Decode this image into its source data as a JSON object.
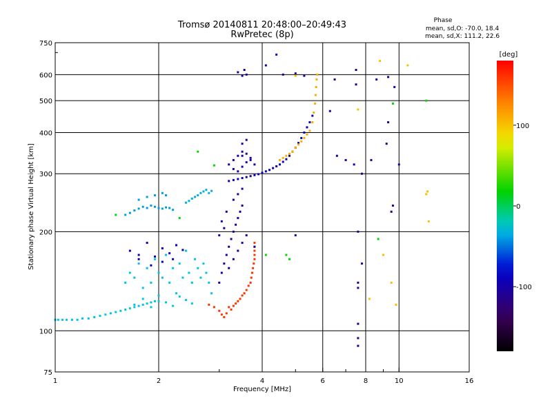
{
  "chart_data": {
    "type": "scatter",
    "title": "Tromsø 20140811 20:48:00–20:49:43",
    "subtitle": "RwPretec (8p)",
    "xlabel": "Frequency [MHz]",
    "ylabel": "Stationary phase Virtual Height [km]",
    "x_scale": "log",
    "y_scale": "log",
    "xlim": [
      1,
      16
    ],
    "ylim": [
      75,
      750
    ],
    "x_ticks": [
      1,
      2,
      4,
      6,
      8,
      10,
      16
    ],
    "x_minor_ticks": [
      3,
      5,
      7,
      9
    ],
    "y_ticks": [
      75,
      100,
      200,
      300,
      400,
      500,
      600,
      750
    ],
    "phase_header": "Phase",
    "stats_o": "mean, sd,O: -70.0, 18.4",
    "stats_x": "mean, sd,X: 111.2, 22.6",
    "colorbar": {
      "label": "[deg]",
      "min": -180,
      "max": 180,
      "ticks": [
        100,
        0,
        -100
      ],
      "tick_labels": [
        "100",
        "0",
        "-100"
      ]
    },
    "series": [
      {
        "values": [
          [
            1.0,
            108
          ],
          [
            1.02,
            108
          ],
          [
            1.05,
            108
          ],
          [
            1.08,
            108
          ],
          [
            1.12,
            108
          ],
          [
            1.16,
            108
          ],
          [
            1.2,
            109
          ],
          [
            1.25,
            109
          ],
          [
            1.3,
            110
          ],
          [
            1.35,
            111
          ],
          [
            1.4,
            112
          ],
          [
            1.45,
            113
          ],
          [
            1.5,
            114
          ],
          [
            1.55,
            115
          ],
          [
            1.6,
            116
          ],
          [
            1.65,
            117
          ],
          [
            1.7,
            118
          ],
          [
            1.75,
            119
          ],
          [
            1.8,
            120
          ],
          [
            1.85,
            121
          ],
          [
            1.9,
            122
          ],
          [
            1.95,
            123
          ],
          [
            2.0,
            123
          ]
        ],
        "phase": -30
      },
      {
        "values": [
          [
            1.6,
            140
          ],
          [
            1.65,
            150
          ],
          [
            1.7,
            145
          ],
          [
            1.75,
            160
          ],
          [
            1.8,
            135
          ],
          [
            1.85,
            155
          ],
          [
            1.9,
            140
          ],
          [
            1.95,
            165
          ],
          [
            2.0,
            150
          ],
          [
            2.05,
            145
          ],
          [
            2.1,
            170
          ],
          [
            2.15,
            140
          ],
          [
            2.2,
            155
          ],
          [
            2.25,
            130
          ],
          [
            2.3,
            160
          ],
          [
            2.35,
            145
          ],
          [
            2.4,
            175
          ],
          [
            2.45,
            150
          ],
          [
            2.5,
            140
          ],
          [
            2.55,
            165
          ],
          [
            2.6,
            155
          ],
          [
            2.65,
            145
          ],
          [
            2.7,
            160
          ],
          [
            2.75,
            150
          ],
          [
            2.8,
            140
          ],
          [
            2.85,
            130
          ],
          [
            1.7,
            120
          ],
          [
            1.8,
            125
          ],
          [
            1.9,
            118
          ],
          [
            2.0,
            128
          ],
          [
            2.1,
            122
          ],
          [
            2.2,
            119
          ],
          [
            2.3,
            127
          ],
          [
            2.4,
            124
          ],
          [
            2.5,
            121
          ]
        ],
        "phase": -30
      },
      {
        "values": [
          [
            1.65,
            175
          ],
          [
            1.75,
            170
          ],
          [
            1.85,
            185
          ],
          [
            1.95,
            168
          ],
          [
            2.05,
            178
          ],
          [
            2.15,
            172
          ],
          [
            2.25,
            182
          ],
          [
            2.35,
            176
          ],
          [
            1.75,
            165
          ],
          [
            1.9,
            158
          ],
          [
            2.05,
            162
          ],
          [
            2.2,
            165
          ]
        ],
        "phase": -90
      },
      {
        "values": [
          [
            1.6,
            225
          ],
          [
            1.65,
            228
          ],
          [
            1.7,
            232
          ],
          [
            1.75,
            235
          ],
          [
            1.8,
            238
          ],
          [
            1.85,
            236
          ],
          [
            1.9,
            240
          ],
          [
            1.95,
            238
          ],
          [
            2.0,
            236
          ],
          [
            2.05,
            235
          ],
          [
            2.1,
            237
          ],
          [
            2.15,
            236
          ],
          [
            2.2,
            233
          ],
          [
            1.75,
            250
          ],
          [
            1.85,
            255
          ],
          [
            1.95,
            258
          ],
          [
            2.05,
            262
          ],
          [
            2.1,
            258
          ]
        ],
        "phase": -40
      },
      {
        "values": [
          [
            2.4,
            245
          ],
          [
            2.45,
            248
          ],
          [
            2.5,
            252
          ],
          [
            2.55,
            255
          ],
          [
            2.6,
            258
          ],
          [
            2.65,
            262
          ],
          [
            2.7,
            265
          ],
          [
            2.75,
            268
          ],
          [
            2.8,
            262
          ],
          [
            2.85,
            266
          ]
        ],
        "phase": -35
      },
      {
        "values": [
          [
            2.8,
            120
          ],
          [
            2.9,
            118
          ],
          [
            3.0,
            115
          ],
          [
            3.05,
            112
          ],
          [
            3.1,
            110
          ],
          [
            3.15,
            113
          ],
          [
            3.2,
            118
          ],
          [
            3.25,
            116
          ],
          [
            3.3,
            119
          ],
          [
            3.35,
            121
          ],
          [
            3.4,
            123
          ],
          [
            3.45,
            125
          ],
          [
            3.5,
            128
          ],
          [
            3.55,
            130
          ],
          [
            3.6,
            133
          ],
          [
            3.65,
            137
          ],
          [
            3.7,
            140
          ],
          [
            3.72,
            145
          ],
          [
            3.74,
            150
          ],
          [
            3.76,
            155
          ],
          [
            3.78,
            160
          ],
          [
            3.8,
            165
          ],
          [
            3.8,
            170
          ],
          [
            3.8,
            175
          ],
          [
            3.8,
            180
          ],
          [
            3.8,
            185
          ]
        ],
        "phase": 160
      },
      {
        "values": [
          [
            3.0,
            140
          ],
          [
            3.05,
            150
          ],
          [
            3.1,
            160
          ],
          [
            3.15,
            170
          ],
          [
            3.2,
            180
          ],
          [
            3.25,
            190
          ],
          [
            3.3,
            200
          ],
          [
            3.35,
            210
          ],
          [
            3.4,
            220
          ],
          [
            3.45,
            230
          ],
          [
            3.5,
            240
          ],
          [
            3.2,
            155
          ],
          [
            3.3,
            165
          ],
          [
            3.4,
            175
          ],
          [
            3.5,
            185
          ],
          [
            3.6,
            195
          ],
          [
            3.3,
            250
          ],
          [
            3.4,
            260
          ],
          [
            3.5,
            270
          ],
          [
            3.0,
            195
          ],
          [
            3.1,
            205
          ],
          [
            3.05,
            215
          ],
          [
            3.15,
            230
          ]
        ],
        "phase": -105
      },
      {
        "values": [
          [
            3.2,
            285
          ],
          [
            3.3,
            287
          ],
          [
            3.4,
            289
          ],
          [
            3.5,
            291
          ],
          [
            3.6,
            293
          ],
          [
            3.7,
            295
          ],
          [
            3.8,
            297
          ],
          [
            3.9,
            299
          ],
          [
            4.0,
            302
          ],
          [
            4.1,
            305
          ],
          [
            4.2,
            308
          ],
          [
            4.3,
            312
          ],
          [
            4.4,
            316
          ],
          [
            4.5,
            320
          ],
          [
            4.6,
            326
          ],
          [
            4.7,
            332
          ],
          [
            4.8,
            340
          ],
          [
            4.9,
            350
          ],
          [
            5.0,
            360
          ],
          [
            5.1,
            372
          ],
          [
            5.2,
            385
          ],
          [
            5.3,
            400
          ],
          [
            5.4,
            415
          ],
          [
            5.5,
            430
          ],
          [
            5.6,
            450
          ]
        ],
        "phase": -90
      },
      {
        "values": [
          [
            3.2,
            320
          ],
          [
            3.3,
            330
          ],
          [
            3.4,
            340
          ],
          [
            3.5,
            350
          ],
          [
            3.6,
            345
          ],
          [
            3.7,
            335
          ],
          [
            3.3,
            310
          ],
          [
            3.4,
            305
          ],
          [
            3.5,
            315
          ],
          [
            3.6,
            325
          ],
          [
            3.7,
            330
          ],
          [
            3.8,
            320
          ]
        ],
        "phase": -100
      },
      {
        "values": [
          [
            4.5,
            330
          ],
          [
            4.6,
            335
          ],
          [
            4.7,
            340
          ],
          [
            4.8,
            345
          ],
          [
            4.9,
            350
          ],
          [
            5.0,
            360
          ],
          [
            5.1,
            368
          ],
          [
            5.2,
            376
          ],
          [
            5.3,
            385
          ],
          [
            5.4,
            395
          ],
          [
            5.5,
            405
          ],
          [
            5.6,
            430
          ],
          [
            5.65,
            460
          ],
          [
            5.7,
            490
          ],
          [
            5.72,
            520
          ],
          [
            5.74,
            550
          ],
          [
            5.76,
            580
          ],
          [
            5.78,
            600
          ]
        ],
        "phase": 110
      },
      {
        "values": [
          [
            3.5,
            595
          ],
          [
            3.6,
            600
          ],
          [
            3.4,
            610
          ],
          [
            3.55,
            620
          ],
          [
            4.1,
            640
          ],
          [
            4.4,
            690
          ],
          [
            4.6,
            600
          ],
          [
            5.0,
            605
          ],
          [
            5.3,
            595
          ],
          [
            6.5,
            580
          ],
          [
            7.5,
            560
          ],
          [
            7.5,
            620
          ],
          [
            8.6,
            580
          ],
          [
            9.3,
            590
          ],
          [
            9.7,
            550
          ],
          [
            9.2,
            370
          ],
          [
            7.8,
            300
          ],
          [
            7.4,
            320
          ],
          [
            7.0,
            330
          ],
          [
            8.3,
            330
          ],
          [
            9.3,
            430
          ],
          [
            10.0,
            320
          ],
          [
            9.6,
            240
          ],
          [
            9.5,
            230
          ],
          [
            7.6,
            200
          ],
          [
            7.8,
            160
          ],
          [
            7.6,
            135
          ],
          [
            7.6,
            140
          ],
          [
            7.6,
            105
          ],
          [
            7.6,
            95
          ],
          [
            7.6,
            90
          ],
          [
            6.3,
            465
          ],
          [
            6.6,
            340
          ],
          [
            5.0,
            195
          ],
          [
            3.8,
            180
          ],
          [
            3.5,
            340
          ],
          [
            3.6,
            380
          ],
          [
            3.5,
            370
          ]
        ],
        "phase": -110
      },
      {
        "values": [
          [
            8.8,
            660
          ],
          [
            10.6,
            640
          ],
          [
            9.0,
            170
          ],
          [
            9.5,
            140
          ],
          [
            8.2,
            125
          ],
          [
            9.8,
            120
          ],
          [
            12.0,
            260
          ],
          [
            12.1,
            265
          ],
          [
            12.2,
            215
          ],
          [
            7.6,
            470
          ],
          [
            5.0,
            595
          ]
        ],
        "phase": 100
      },
      {
        "values": [
          [
            1.5,
            225
          ],
          [
            2.3,
            220
          ],
          [
            2.6,
            350
          ],
          [
            2.9,
            318
          ],
          [
            4.1,
            170
          ],
          [
            4.7,
            170
          ],
          [
            4.8,
            165
          ],
          [
            9.6,
            490
          ],
          [
            12.0,
            500
          ],
          [
            8.7,
            190
          ]
        ],
        "phase": 20
      }
    ]
  }
}
